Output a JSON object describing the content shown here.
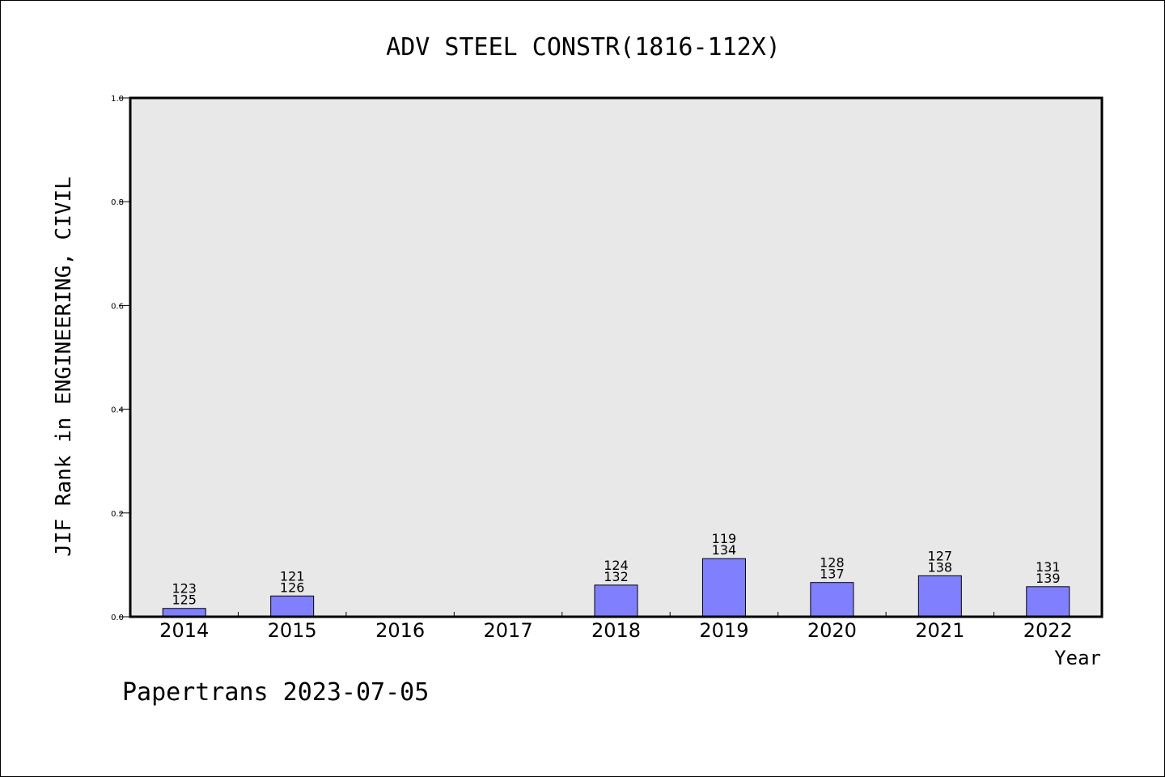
{
  "chart_data": {
    "type": "bar",
    "title": "ADV STEEL CONSTR(1816-112X)",
    "xlabel": "Year",
    "ylabel": "JIF Rank in ENGINEERING, CIVIL",
    "ylim": [
      0.0,
      1.0
    ],
    "yticks": [
      "0.0",
      "0.2",
      "0.4",
      "0.6",
      "0.8",
      "1.0"
    ],
    "categories": [
      "2014",
      "2015",
      "2016",
      "2017",
      "2018",
      "2019",
      "2020",
      "2021",
      "2022"
    ],
    "values": [
      0.016,
      0.04,
      null,
      null,
      0.061,
      0.112,
      0.066,
      0.079,
      0.058
    ],
    "rank_labels": [
      [
        "123",
        "125"
      ],
      [
        "121",
        "126"
      ],
      null,
      null,
      [
        "124",
        "132"
      ],
      [
        "119",
        "134"
      ],
      [
        "128",
        "137"
      ],
      [
        "127",
        "138"
      ],
      [
        "131",
        "139"
      ]
    ],
    "grid": false,
    "colors": {
      "bar_fill": "#8080ff",
      "plot_bg": "#e8e8e8"
    }
  },
  "footer": {
    "text": "Papertrans 2023-07-05"
  }
}
